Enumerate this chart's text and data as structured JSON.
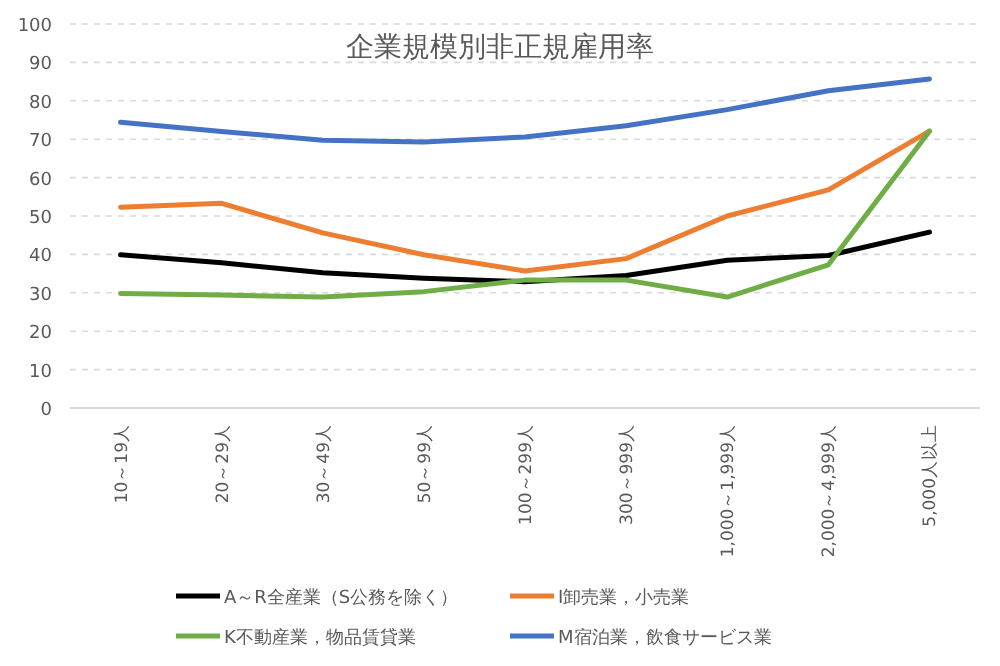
{
  "chart_data": {
    "type": "line",
    "title": "企業規模別非正規雇用率",
    "categories": [
      "10～19人",
      "20～29人",
      "30～49人",
      "50～99人",
      "100～299人",
      "300～999人",
      "1,000～1,999人",
      "2,000～4,999人",
      "5,000人以上"
    ],
    "series": [
      {
        "name": "A～R全産業（S公務を除く）",
        "color": "#000000",
        "values": [
          39.9,
          37.8,
          35.2,
          33.8,
          32.9,
          34.5,
          38.5,
          39.7,
          45.8
        ]
      },
      {
        "name": "I卸売業，小売業",
        "color": "#ed7d31",
        "values": [
          52.3,
          53.3,
          45.6,
          39.9,
          35.7,
          38.9,
          50,
          56.8,
          72.1
        ]
      },
      {
        "name": "K不動産業，物品賃貸業",
        "color": "#70ad47",
        "values": [
          29.8,
          29.4,
          28.9,
          30.3,
          33.3,
          33.3,
          28.9,
          37.3,
          72.1
        ]
      },
      {
        "name": "M宿泊業，飲食サービス業",
        "color": "#4472c4",
        "values": [
          74.4,
          72,
          69.7,
          69.3,
          70.6,
          73.5,
          77.7,
          82.6,
          85.7
        ]
      }
    ],
    "ylim": [
      0,
      100
    ],
    "yticks": [
      0,
      10,
      20,
      30,
      40,
      50,
      60,
      70,
      80,
      90,
      100
    ],
    "grid": "y",
    "legend": "bottom",
    "marker": "none",
    "line_style": "solid"
  }
}
